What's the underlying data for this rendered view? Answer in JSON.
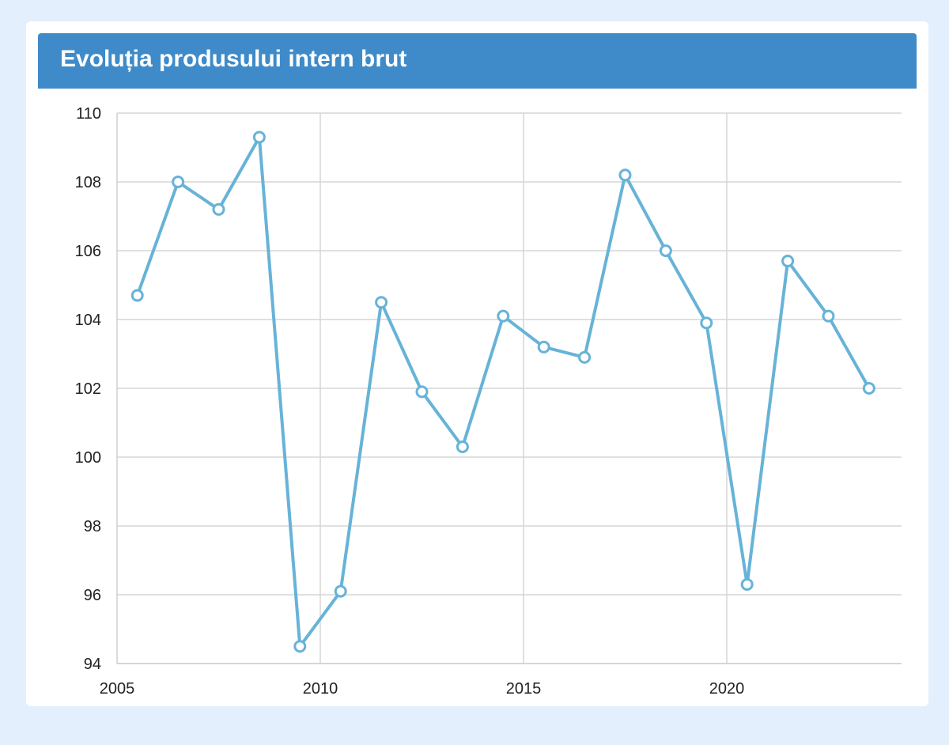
{
  "header": {
    "title": "Evoluția produsului intern brut"
  },
  "chart_data": {
    "type": "line",
    "title": "Evoluția produsului intern brut",
    "xlabel": "",
    "ylabel": "",
    "xlim": [
      2005,
      2024.3
    ],
    "ylim": [
      94,
      110
    ],
    "x_ticks": [
      2005,
      2010,
      2015,
      2020
    ],
    "y_ticks": [
      94,
      96,
      98,
      100,
      102,
      104,
      106,
      108,
      110
    ],
    "grid": true,
    "legend": "none",
    "line_color": "#67b3d8",
    "series": [
      {
        "x": [
          2005.5,
          2006.5,
          2007.5,
          2008.5,
          2009.5,
          2010.5,
          2011.5,
          2012.5,
          2013.5,
          2014.5,
          2015.5,
          2016.5,
          2017.5,
          2018.5,
          2019.5,
          2020.5,
          2021.5,
          2022.5,
          2023.5
        ],
        "values": [
          104.7,
          108.0,
          107.2,
          109.3,
          94.5,
          96.1,
          104.5,
          101.9,
          100.3,
          104.1,
          103.2,
          102.9,
          108.2,
          106.0,
          103.9,
          96.3,
          105.7,
          104.1,
          102.0
        ]
      }
    ]
  }
}
